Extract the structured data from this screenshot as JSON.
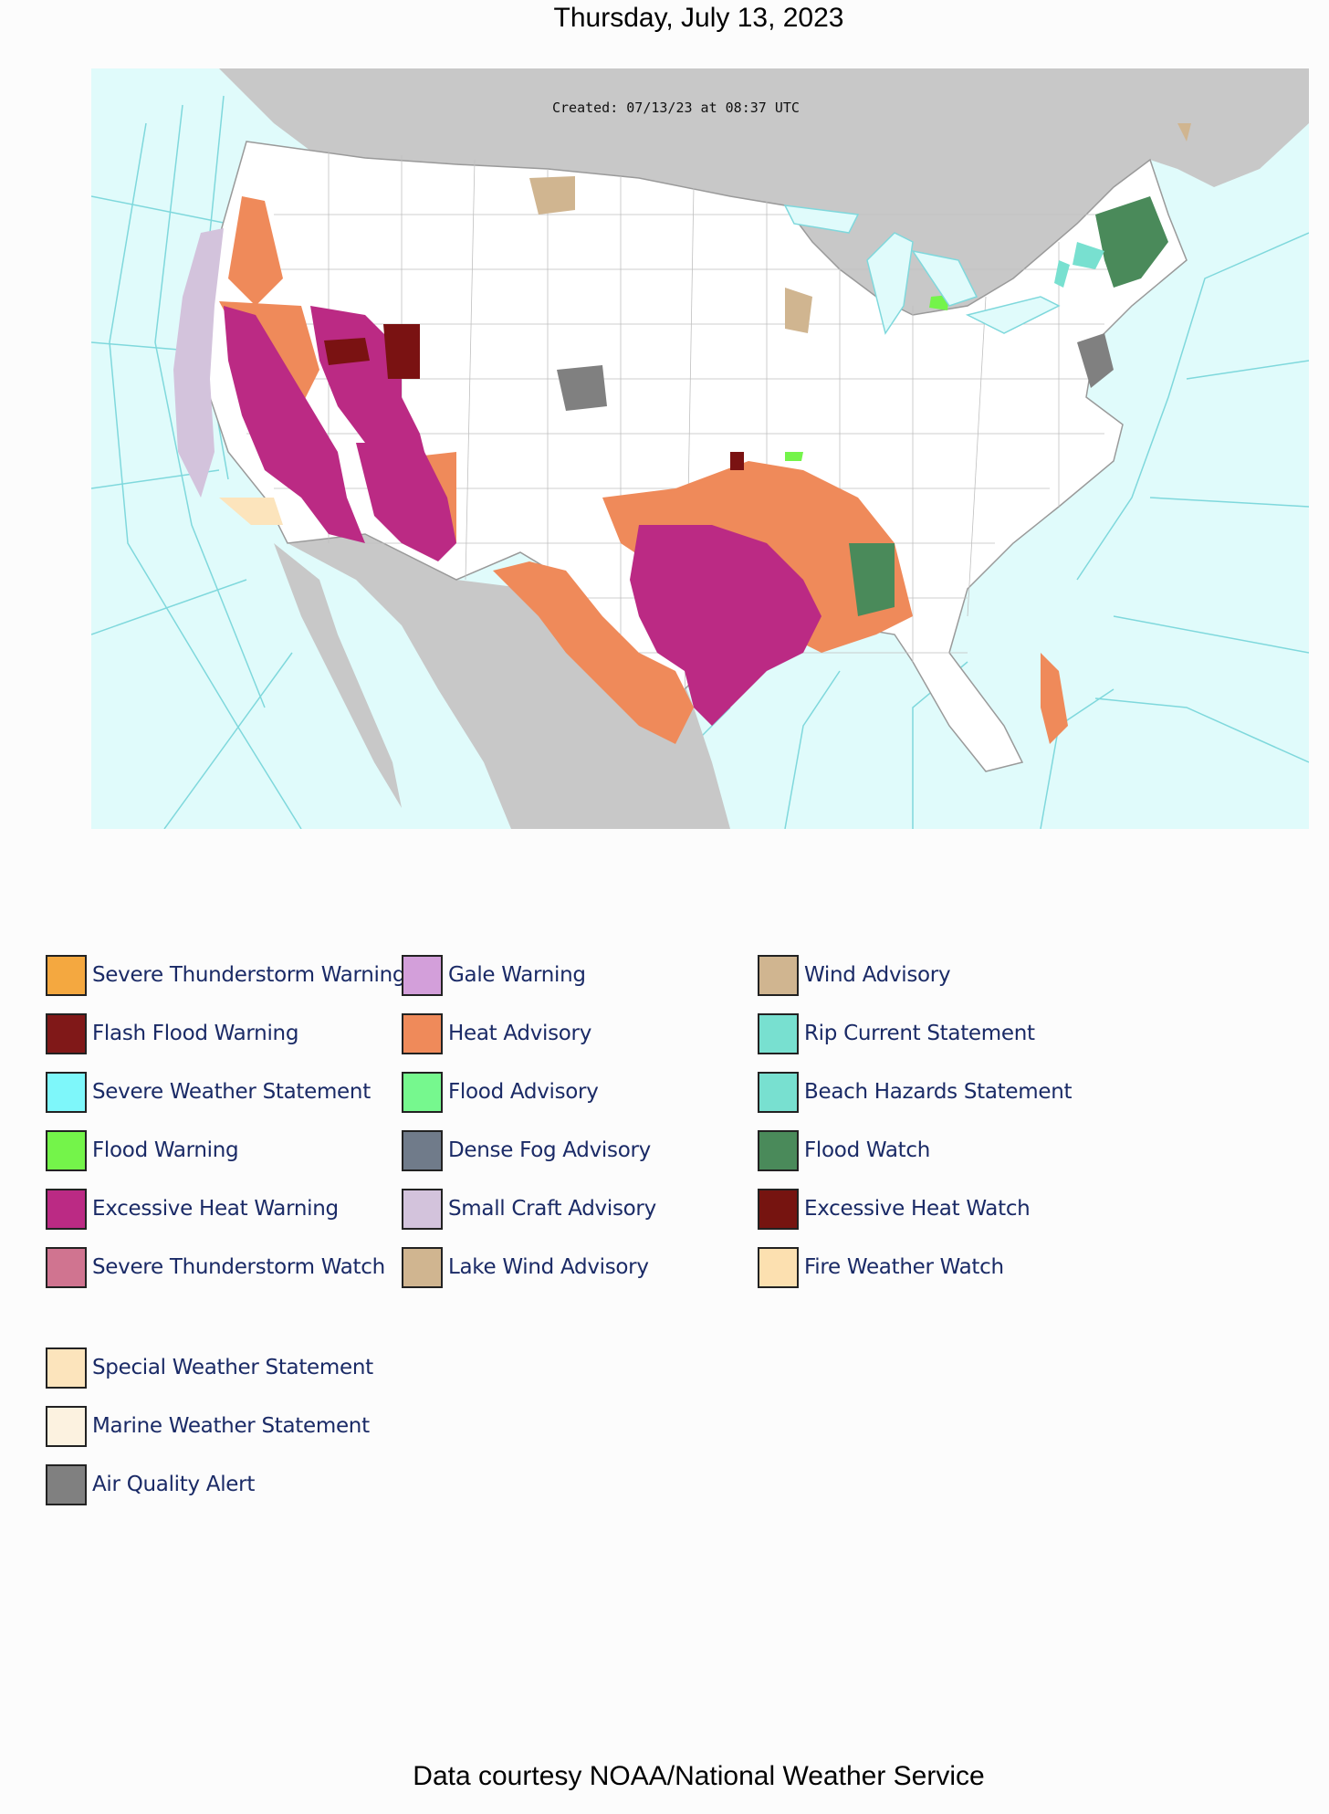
{
  "header": {
    "title": "Thursday, July 13, 2023"
  },
  "map": {
    "created_stamp": "Created: 07/13/23 at 08:37 UTC"
  },
  "legend": {
    "columns": [
      [
        {
          "label": "Severe Thunderstorm Warning",
          "color": "#f4a840"
        },
        {
          "label": "Flash Flood Warning",
          "color": "#801818"
        },
        {
          "label": "Severe Weather Statement",
          "color": "#7ef7fa"
        },
        {
          "label": "Flood Warning",
          "color": "#74f44a"
        },
        {
          "label": "Excessive Heat Warning",
          "color": "#bb2a84"
        },
        {
          "label": "Severe Thunderstorm Watch",
          "color": "#d07490"
        }
      ],
      [
        {
          "label": "Gale Warning",
          "color": "#d39fda"
        },
        {
          "label": "Heat Advisory",
          "color": "#ef8a5a"
        },
        {
          "label": "Flood Advisory",
          "color": "#76f88e"
        },
        {
          "label": "Dense Fog Advisory",
          "color": "#707b8a"
        },
        {
          "label": "Small Craft Advisory",
          "color": "#d3c3dc"
        },
        {
          "label": "Lake Wind Advisory",
          "color": "#d0b590"
        }
      ],
      [
        {
          "label": "Wind Advisory",
          "color": "#d0b590"
        },
        {
          "label": "Rip Current Statement",
          "color": "#78e0d0"
        },
        {
          "label": "Beach Hazards Statement",
          "color": "#78e0d0"
        },
        {
          "label": "Flood Watch",
          "color": "#4a8a5a"
        },
        {
          "label": "Excessive Heat Watch",
          "color": "#761410"
        },
        {
          "label": "Fire Weather Watch",
          "color": "#fce0b0"
        }
      ]
    ],
    "extra": [
      {
        "label": "Special Weather Statement",
        "color": "#fce4bc"
      },
      {
        "label": "Marine Weather Statement",
        "color": "#fcf2e0"
      },
      {
        "label": "Air Quality Alert",
        "color": "#808080"
      }
    ]
  },
  "footer": {
    "text": "Data courtesy NOAA/National Weather Service"
  }
}
